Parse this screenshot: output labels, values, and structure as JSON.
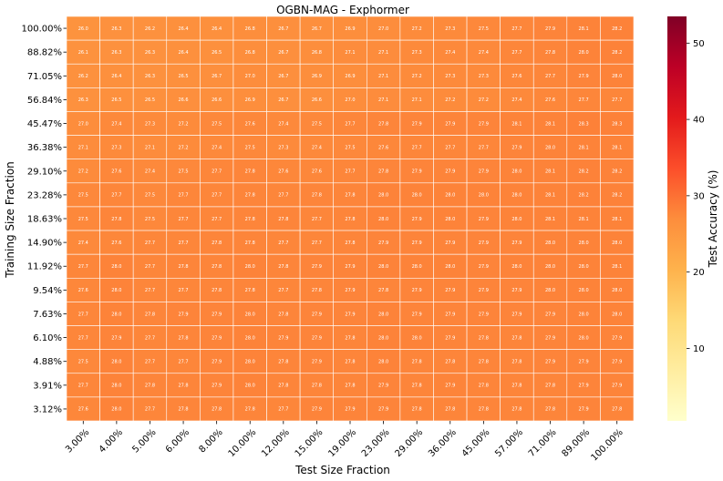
{
  "chart_data": {
    "type": "heatmap",
    "title": "OGBN-MAG - Exphormer",
    "xlabel": "Test Size Fraction",
    "ylabel": "Training Size Fraction",
    "x_categories": [
      "3.00%",
      "4.00%",
      "5.00%",
      "6.00%",
      "8.00%",
      "10.00%",
      "12.00%",
      "15.00%",
      "19.00%",
      "23.00%",
      "29.00%",
      "36.00%",
      "45.00%",
      "57.00%",
      "71.00%",
      "89.00%",
      "100.00%"
    ],
    "y_categories": [
      "100.00%",
      "88.82%",
      "71.05%",
      "56.84%",
      "45.47%",
      "36.38%",
      "29.10%",
      "23.28%",
      "18.63%",
      "14.90%",
      "11.92%",
      "9.54%",
      "7.63%",
      "6.10%",
      "4.88%",
      "3.91%",
      "3.12%"
    ],
    "values": [
      [
        26.0,
        26.3,
        26.2,
        26.4,
        26.4,
        26.8,
        26.7,
        26.7,
        26.9,
        27.0,
        27.2,
        27.3,
        27.5,
        27.7,
        27.9,
        28.1,
        28.2
      ],
      [
        26.1,
        26.3,
        26.3,
        26.4,
        26.5,
        26.8,
        26.7,
        26.8,
        27.1,
        27.1,
        27.3,
        27.4,
        27.4,
        27.7,
        27.8,
        28.0,
        28.2
      ],
      [
        26.2,
        26.4,
        26.3,
        26.5,
        26.7,
        27.0,
        26.7,
        26.9,
        26.9,
        27.1,
        27.2,
        27.3,
        27.3,
        27.6,
        27.7,
        27.9,
        28.0
      ],
      [
        26.3,
        26.5,
        26.5,
        26.6,
        26.6,
        26.9,
        26.7,
        26.6,
        27.0,
        27.1,
        27.1,
        27.2,
        27.2,
        27.4,
        27.6,
        27.7,
        27.7
      ],
      [
        27.0,
        27.4,
        27.3,
        27.2,
        27.5,
        27.6,
        27.4,
        27.5,
        27.7,
        27.8,
        27.9,
        27.9,
        27.9,
        28.1,
        28.1,
        28.3,
        28.3
      ],
      [
        27.1,
        27.3,
        27.1,
        27.2,
        27.4,
        27.5,
        27.3,
        27.4,
        27.5,
        27.6,
        27.7,
        27.7,
        27.7,
        27.9,
        28.0,
        28.1,
        28.1
      ],
      [
        27.2,
        27.6,
        27.4,
        27.5,
        27.7,
        27.8,
        27.6,
        27.6,
        27.7,
        27.8,
        27.9,
        27.9,
        27.9,
        28.0,
        28.1,
        28.2,
        28.2
      ],
      [
        27.5,
        27.7,
        27.5,
        27.7,
        27.7,
        27.8,
        27.7,
        27.8,
        27.8,
        28.0,
        28.0,
        28.0,
        28.0,
        28.0,
        28.1,
        28.2,
        28.2
      ],
      [
        27.5,
        27.8,
        27.5,
        27.7,
        27.7,
        27.8,
        27.8,
        27.7,
        27.8,
        28.0,
        27.9,
        28.0,
        27.9,
        28.0,
        28.1,
        28.1,
        28.1
      ],
      [
        27.4,
        27.6,
        27.7,
        27.7,
        27.8,
        27.8,
        27.7,
        27.7,
        27.8,
        27.9,
        27.9,
        27.9,
        27.9,
        27.9,
        28.0,
        28.0,
        28.0
      ],
      [
        27.7,
        28.0,
        27.7,
        27.8,
        27.8,
        28.0,
        27.8,
        27.9,
        27.9,
        28.0,
        28.0,
        28.0,
        27.9,
        28.0,
        28.0,
        28.0,
        28.1
      ],
      [
        27.6,
        28.0,
        27.7,
        27.7,
        27.8,
        27.8,
        27.7,
        27.8,
        27.9,
        27.8,
        27.9,
        27.9,
        27.9,
        27.9,
        28.0,
        28.0,
        28.0
      ],
      [
        27.7,
        28.0,
        27.8,
        27.9,
        27.9,
        28.0,
        27.8,
        27.9,
        27.9,
        28.0,
        27.9,
        27.9,
        27.9,
        27.9,
        27.9,
        28.0,
        28.0
      ],
      [
        27.7,
        27.9,
        27.7,
        27.8,
        27.9,
        28.0,
        27.9,
        27.9,
        27.8,
        28.0,
        28.0,
        27.9,
        27.8,
        27.8,
        27.9,
        28.0,
        27.9
      ],
      [
        27.5,
        28.0,
        27.7,
        27.7,
        27.9,
        28.0,
        27.8,
        27.9,
        27.8,
        28.0,
        27.8,
        27.8,
        27.8,
        27.8,
        27.9,
        27.9,
        27.9
      ],
      [
        27.7,
        28.0,
        27.8,
        27.8,
        27.9,
        28.0,
        27.8,
        27.8,
        27.8,
        27.9,
        27.8,
        27.9,
        27.8,
        27.8,
        27.8,
        27.9,
        27.9
      ],
      [
        27.6,
        28.0,
        27.7,
        27.8,
        27.8,
        27.8,
        27.7,
        27.9,
        27.9,
        27.9,
        27.8,
        27.8,
        27.8,
        27.8,
        27.8,
        27.9,
        27.8
      ]
    ],
    "colorbar": {
      "label": "Test Accuracy (%)",
      "range": [
        0.5,
        53.5
      ],
      "ticks": [
        10,
        20,
        30,
        40,
        50
      ],
      "colormap": "YlOrRd"
    },
    "cell_label_color": "#ffffff",
    "grid_line_color": "#ffffff"
  }
}
